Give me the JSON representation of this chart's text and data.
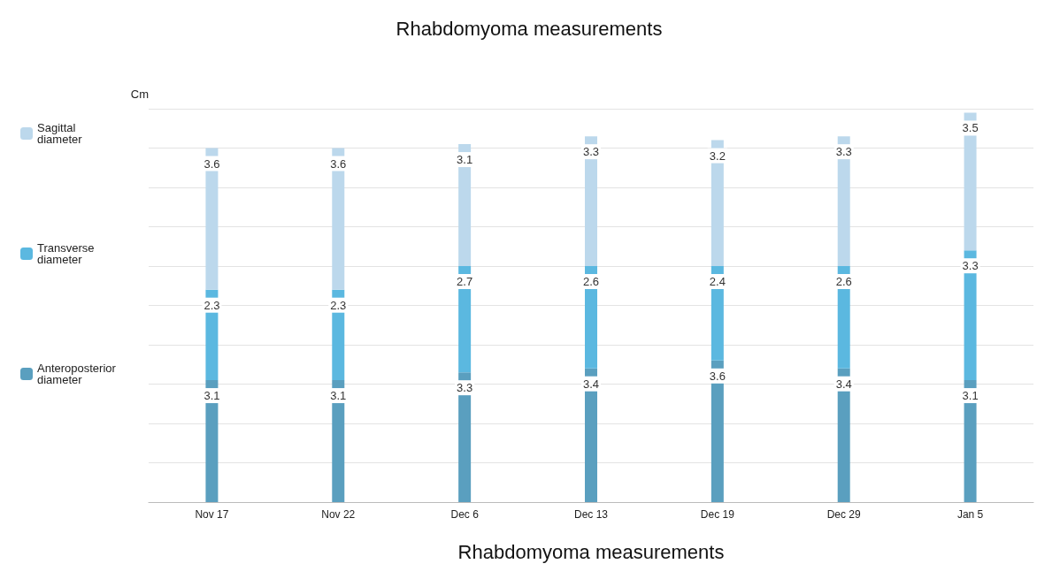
{
  "chart_data": {
    "type": "bar",
    "stacked": true,
    "title": "Rhabdomyoma measurements",
    "xlabel": "Rhabdomyoma measurements",
    "ylabel": "Cm",
    "categories": [
      "Nov 17",
      "Nov 22",
      "Dec 6",
      "Dec 13",
      "Dec 19",
      "Dec 29",
      "Jan 5"
    ],
    "ylim": [
      0,
      10
    ],
    "yticks": [
      {
        "value": 0,
        "label": null
      },
      {
        "value": 1,
        "label": null
      },
      {
        "value": 2,
        "label": null
      },
      {
        "value": 3,
        "label": null
      },
      {
        "value": 4,
        "label": null
      },
      {
        "value": 5,
        "label": null
      },
      {
        "value": 6,
        "label": null
      },
      {
        "value": 7,
        "label": null
      },
      {
        "value": 8,
        "label": null
      },
      {
        "value": 9,
        "label": null
      },
      {
        "value": 10,
        "label": null
      }
    ],
    "series": [
      {
        "name": "Anteroposterior diameter",
        "color": "#5a9fbf",
        "values": [
          3.1,
          3.1,
          3.3,
          3.4,
          3.6,
          3.4,
          3.1
        ]
      },
      {
        "name": "Transverse diameter",
        "color": "#5bb8e0",
        "values": [
          2.3,
          2.3,
          2.7,
          2.6,
          2.4,
          2.6,
          3.3
        ]
      },
      {
        "name": "Sagittal diameter",
        "color": "#bcd8ec",
        "values": [
          3.6,
          3.6,
          3.1,
          3.3,
          3.2,
          3.3,
          3.5
        ]
      }
    ],
    "data_labels": true,
    "grid": "y",
    "legend": "left"
  }
}
